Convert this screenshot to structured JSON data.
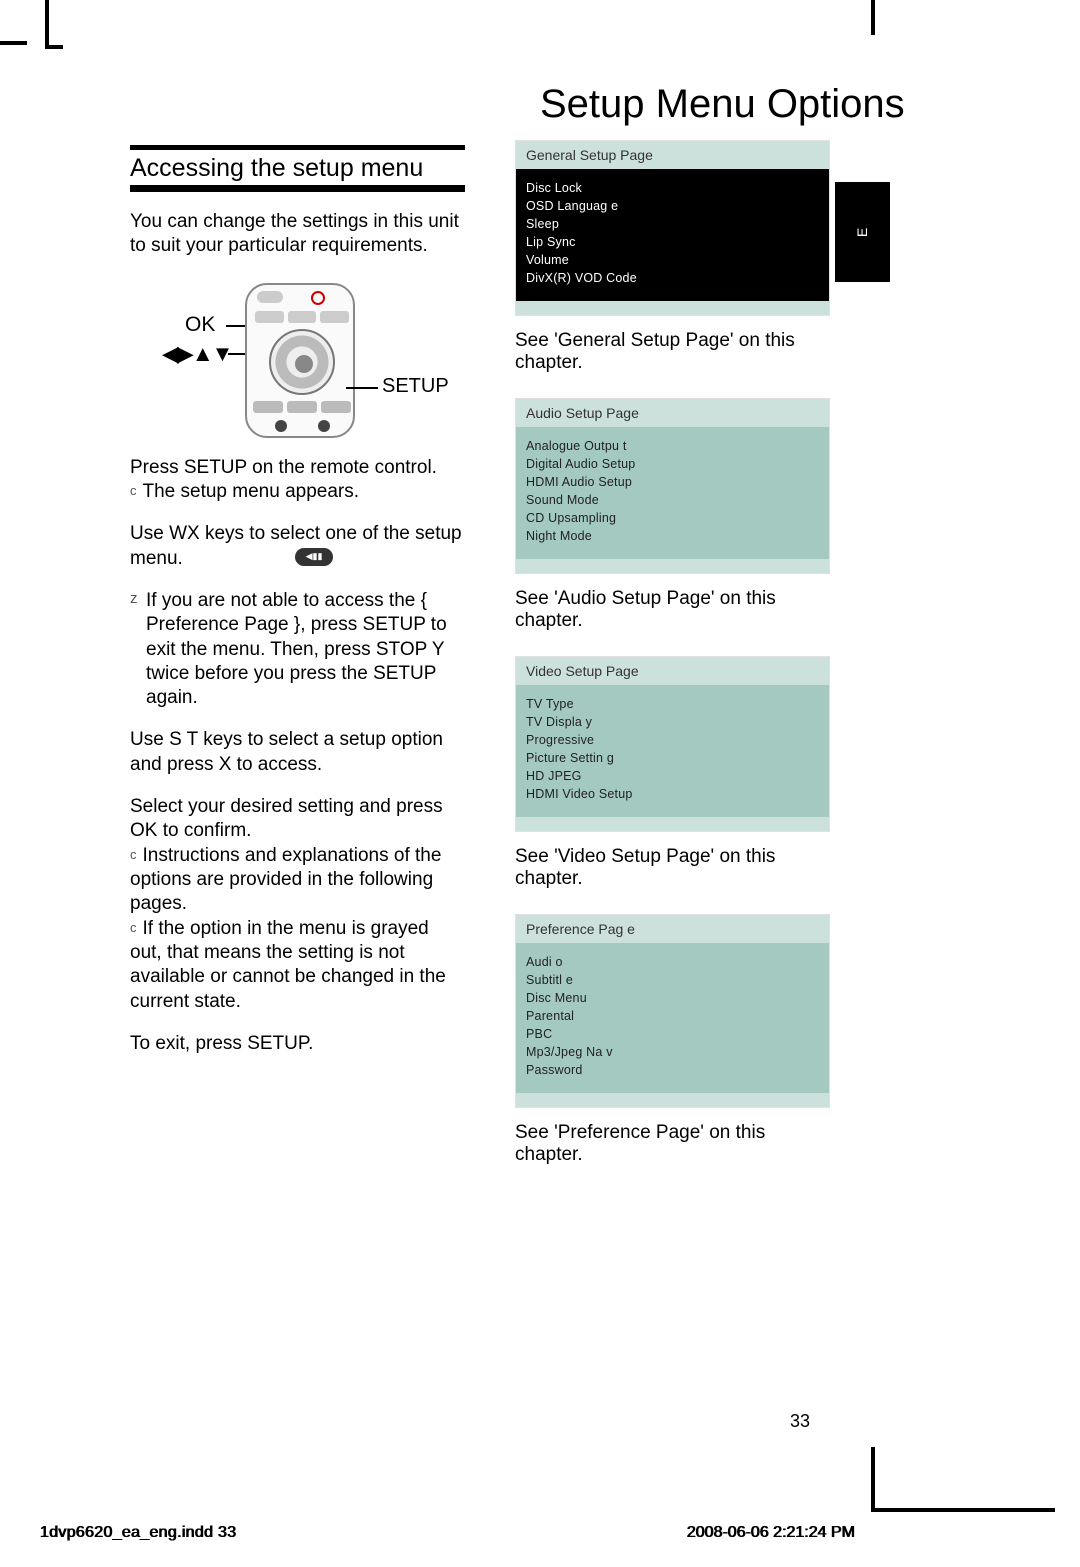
{
  "title": "Setup Menu Options",
  "sideTab": "E",
  "sectionTitle": "Accessing the setup menu",
  "intro": "You can change the settings in this unit to suit your particular requirements.",
  "remote": {
    "ok": "OK",
    "arrows": "◀▶▲▼",
    "setup": "SETUP"
  },
  "paras": {
    "p1a": "Press SETUP on the remote control.",
    "p1b": "The setup menu appears.",
    "p2": "Use  WX keys to select one of the setup menu.",
    "p3": "If you are not able to access the { Preference Page }, press SETUP to exit the menu. Then, press  STOP  Y twice before you press the SETUP again.",
    "p4": "Use  S T keys to select a setup option and press  X to access.",
    "p5": "Select your desired setting and press OK to confirm.",
    "p5b": "Instructions and explanations of the options are provided in the following pages.",
    "p5c": "If the option in the menu is grayed out, that means the setting is not available or cannot be changed in the current state.",
    "p6": "To exit, press SETUP."
  },
  "menus": {
    "general": {
      "title": "General Setup Page",
      "items": [
        "Disc Lock",
        "OSD Languag e",
        "Sleep",
        "Lip Sync",
        "Volume",
        "DivX(R) VOD Code"
      ],
      "see": "See 'General Setup Page' on this chapter.",
      "bodyStyle": "dark"
    },
    "audio": {
      "title": "Audio Setup Page",
      "items": [
        "Analogue Outpu  t",
        "Digital Audio Setup",
        "HDMI Audio Setup",
        "Sound Mode",
        "CD Upsampling",
        "Night Mode"
      ],
      "see": "See 'Audio Setup Page' on this chapter.",
      "bodyStyle": "light"
    },
    "video": {
      "title": "Video Setup Page",
      "items": [
        "TV Type",
        "TV Displa y",
        "Progressive",
        "Picture Settin  g",
        "HD JPEG",
        "HDMI Video Setup"
      ],
      "see": "See 'Video Setup Page' on this chapter.",
      "bodyStyle": "light"
    },
    "preference": {
      "title": "Preference Pag e",
      "items": [
        "Audi o",
        "Subtitl e",
        "Disc Menu",
        "Parental",
        "PBC",
        "Mp3/Jpeg Na v",
        "Password"
      ],
      "see": "See 'Preference Page' on this chapter.",
      "bodyStyle": "light"
    }
  },
  "pageNum": "33",
  "footerLeft": "1dvp6620_ea_eng.indd   33",
  "footerRight": "2008-06-06   2:21:24 PM",
  "colors": {
    "menuHeader": "#cde1dc",
    "menuBodyDark": "#000000",
    "menuBodyLight": "#a3c9c0"
  }
}
